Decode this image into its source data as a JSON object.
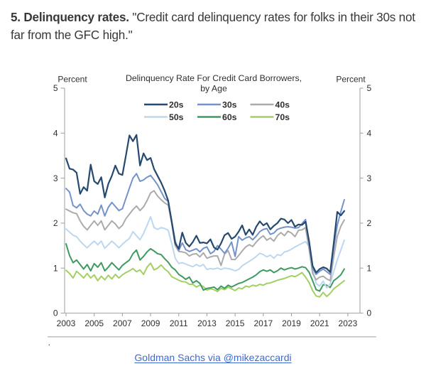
{
  "page": {
    "background": "#ffffff"
  },
  "heading": {
    "bold": "5. Delinquency rates.",
    "quote": "\"Credit card delinquency rates for folks in their 30s not far from the GFC high.\""
  },
  "figure": {
    "footnote_mark": "."
  },
  "caption": {
    "link_text": "Goldman Sachs via @mikezaccardi",
    "link_color": "#3b6ad2"
  },
  "chart_data": {
    "type": "line",
    "title": "Delinquency Rate For Credit Card Borrowers,",
    "subtitle": "by Age",
    "unit_label_left": "Percent",
    "unit_label_right": "Percent",
    "ylim": [
      0,
      5
    ],
    "yticks": [
      0,
      1,
      2,
      3,
      4,
      5
    ],
    "xtick_years": [
      2003,
      2005,
      2007,
      2009,
      2011,
      2013,
      2015,
      2017,
      2019,
      2021,
      2023
    ],
    "x_start": 2003.0,
    "x_step": 0.25,
    "axis_x_range": [
      2002.9,
      2023.9
    ],
    "grid": false,
    "legend_position": "top",
    "legend_columns": 3,
    "axis_color": "#a5a5a5",
    "text_color": "#2f2f2f",
    "series": [
      {
        "name": "20s",
        "color": "#26496f",
        "values": [
          3.44,
          3.21,
          3.19,
          3.12,
          2.65,
          2.8,
          2.72,
          3.3,
          2.93,
          2.87,
          3.02,
          2.57,
          2.87,
          3.05,
          3.28,
          3.1,
          3.07,
          3.5,
          3.95,
          3.82,
          3.96,
          3.28,
          3.55,
          3.4,
          3.45,
          3.2,
          3.05,
          2.9,
          2.72,
          2.5,
          2.03,
          1.55,
          1.43,
          1.79,
          1.56,
          1.48,
          1.58,
          1.72,
          1.56,
          1.57,
          1.55,
          1.64,
          1.46,
          1.41,
          1.55,
          1.73,
          1.78,
          1.65,
          1.7,
          1.81,
          1.95,
          1.74,
          1.86,
          1.74,
          1.92,
          2.04,
          1.95,
          2.0,
          1.86,
          1.94,
          2.0,
          2.1,
          2.08,
          2.0,
          2.07,
          1.92,
          1.97,
          1.96,
          2.03,
          1.6,
          1.05,
          0.9,
          0.98,
          1.02,
          0.99,
          0.91,
          1.55,
          2.25,
          2.17,
          2.27
        ]
      },
      {
        "name": "30s",
        "color": "#7593c9",
        "values": [
          2.77,
          2.69,
          2.39,
          2.34,
          2.42,
          2.28,
          2.2,
          2.16,
          2.27,
          2.2,
          2.4,
          2.16,
          2.35,
          2.46,
          2.37,
          2.28,
          2.32,
          2.55,
          2.78,
          3.0,
          3.1,
          2.93,
          2.96,
          3.02,
          3.06,
          2.96,
          2.85,
          2.7,
          2.55,
          2.48,
          2.05,
          1.6,
          1.39,
          1.56,
          1.41,
          1.37,
          1.4,
          1.43,
          1.36,
          1.44,
          1.47,
          1.32,
          1.37,
          1.5,
          1.42,
          1.33,
          1.44,
          1.58,
          1.26,
          1.7,
          1.62,
          1.67,
          1.7,
          1.63,
          1.71,
          1.81,
          1.86,
          1.88,
          1.75,
          1.78,
          1.86,
          1.89,
          1.91,
          1.92,
          1.91,
          1.89,
          1.9,
          1.99,
          2.08,
          1.55,
          1.0,
          0.86,
          0.93,
          0.98,
          0.92,
          0.86,
          1.45,
          1.95,
          2.25,
          2.52
        ]
      },
      {
        "name": "40s",
        "color": "#ababab",
        "values": [
          2.31,
          2.27,
          2.23,
          2.21,
          2.05,
          1.93,
          1.85,
          1.95,
          2.05,
          1.95,
          2.05,
          1.85,
          1.95,
          2.05,
          1.98,
          1.88,
          1.95,
          2.1,
          2.2,
          2.3,
          2.38,
          2.28,
          2.36,
          2.5,
          2.67,
          2.72,
          2.6,
          2.52,
          2.45,
          2.4,
          2.0,
          1.5,
          1.37,
          1.36,
          1.34,
          1.27,
          1.31,
          1.32,
          1.25,
          1.34,
          1.22,
          1.25,
          1.27,
          1.27,
          1.06,
          1.31,
          1.39,
          1.19,
          1.19,
          1.28,
          1.38,
          1.47,
          1.52,
          1.48,
          1.58,
          1.66,
          1.72,
          1.62,
          1.67,
          1.6,
          1.72,
          1.79,
          1.72,
          1.82,
          1.78,
          1.7,
          1.84,
          1.85,
          1.9,
          1.42,
          0.88,
          0.74,
          0.8,
          0.82,
          0.76,
          0.72,
          1.25,
          1.7,
          1.93,
          2.07
        ]
      },
      {
        "name": "50s",
        "color": "#bcd7ef",
        "values": [
          1.87,
          1.8,
          1.73,
          1.7,
          1.6,
          1.52,
          1.45,
          1.53,
          1.6,
          1.52,
          1.6,
          1.44,
          1.52,
          1.6,
          1.53,
          1.45,
          1.53,
          1.6,
          1.66,
          1.81,
          1.72,
          1.63,
          1.77,
          1.95,
          2.14,
          1.9,
          1.86,
          1.9,
          1.88,
          1.84,
          1.55,
          1.22,
          1.1,
          1.12,
          1.09,
          1.06,
          1.03,
          1.08,
          1.04,
          1.08,
          0.97,
          0.99,
          0.98,
          1.0,
          0.97,
          1.0,
          0.99,
          0.97,
          0.94,
          0.97,
          1.05,
          1.1,
          1.15,
          1.2,
          1.26,
          1.33,
          1.3,
          1.25,
          1.29,
          1.22,
          1.3,
          1.28,
          1.36,
          1.38,
          1.42,
          1.47,
          1.51,
          1.55,
          1.59,
          1.48,
          0.98,
          0.66,
          0.6,
          0.71,
          0.56,
          0.65,
          0.92,
          1.18,
          1.4,
          1.62
        ]
      },
      {
        "name": "60s",
        "color": "#3d9a60",
        "values": [
          1.54,
          1.28,
          1.12,
          1.18,
          1.08,
          0.98,
          1.08,
          0.94,
          1.1,
          1.02,
          1.12,
          0.94,
          1.02,
          1.12,
          1.04,
          0.96,
          1.06,
          1.12,
          1.18,
          1.32,
          1.4,
          1.18,
          1.26,
          1.36,
          1.43,
          1.38,
          1.32,
          1.3,
          1.21,
          1.13,
          1.02,
          0.96,
          0.86,
          0.81,
          0.75,
          0.8,
          0.67,
          0.72,
          0.66,
          0.51,
          0.55,
          0.56,
          0.58,
          0.52,
          0.6,
          0.55,
          0.62,
          0.58,
          0.62,
          0.66,
          0.68,
          0.72,
          0.76,
          0.8,
          0.85,
          0.92,
          0.96,
          0.93,
          0.96,
          0.9,
          0.94,
          1.0,
          0.96,
          0.99,
          1.01,
          0.98,
          1.0,
          1.03,
          1.01,
          0.91,
          0.72,
          0.52,
          0.49,
          0.63,
          0.62,
          0.57,
          0.72,
          0.78,
          0.85,
          0.98
        ]
      },
      {
        "name": "70s",
        "color": "#a3cf63",
        "values": [
          0.95,
          0.88,
          0.78,
          0.93,
          0.86,
          0.78,
          0.88,
          0.78,
          0.85,
          0.72,
          0.82,
          0.74,
          0.84,
          0.76,
          0.86,
          0.78,
          0.85,
          0.9,
          0.94,
          0.99,
          0.92,
          0.96,
          0.86,
          1.02,
          1.11,
          0.96,
          1.0,
          1.07,
          0.98,
          0.92,
          0.81,
          0.77,
          0.73,
          0.7,
          0.69,
          0.64,
          0.64,
          0.58,
          0.62,
          0.59,
          0.51,
          0.54,
          0.52,
          0.48,
          0.55,
          0.52,
          0.58,
          0.54,
          0.5,
          0.56,
          0.54,
          0.6,
          0.58,
          0.62,
          0.6,
          0.64,
          0.62,
          0.66,
          0.67,
          0.7,
          0.73,
          0.75,
          0.77,
          0.8,
          0.83,
          0.81,
          0.85,
          0.9,
          0.8,
          0.68,
          0.5,
          0.38,
          0.36,
          0.46,
          0.37,
          0.44,
          0.54,
          0.6,
          0.66,
          0.72
        ]
      }
    ]
  }
}
